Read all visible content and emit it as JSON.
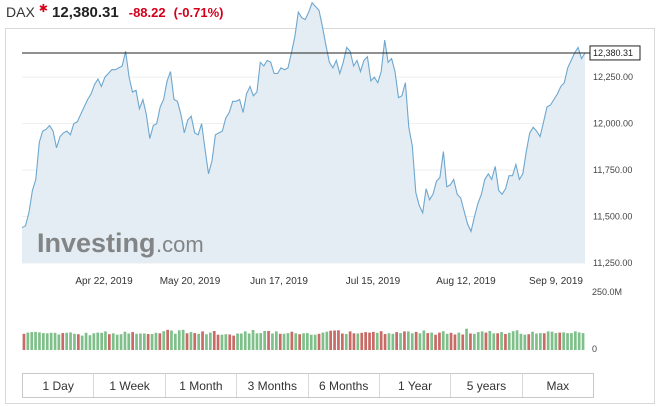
{
  "header": {
    "symbol": "DAX",
    "direction_icon": "star-down-icon",
    "last": "12,380.31",
    "change": "-88.22",
    "change_pct": "(-0.71%)",
    "down_color": "#d4001b"
  },
  "watermark": {
    "brand": "Investing",
    "suffix": ".com"
  },
  "timeframes": [
    "1 Day",
    "1 Week",
    "1 Month",
    "3 Months",
    "6 Months",
    "1 Year",
    "5 years",
    "Max"
  ],
  "chart_data": {
    "type": "area",
    "title": "",
    "price_axis": {
      "min": 11250,
      "max": 12450,
      "ticks": [
        11250,
        11500,
        11750,
        12000,
        12250
      ],
      "tick_labels": [
        "11,250.00",
        "11,500.00",
        "11,750.00",
        "12,000.00",
        "12,250.00"
      ]
    },
    "date_axis": {
      "labels": [
        "Apr 22, 2019",
        "May 20, 2019",
        "Jun 17, 2019",
        "Jul 15, 2019",
        "Aug 12, 2019",
        "Sep 9, 2019"
      ]
    },
    "last_price": {
      "value": 12380.31,
      "label": "12,380.31"
    },
    "series": [
      {
        "values": [
          11440,
          11450,
          11520,
          11640,
          11700,
          11900,
          11960,
          11970,
          11990,
          11960,
          11870,
          11930,
          11950,
          11960,
          11940,
          12000,
          12010,
          12050,
          12090,
          12130,
          12160,
          12210,
          12240,
          12200,
          12250,
          12270,
          12290,
          12290,
          12300,
          12310,
          12390,
          12250,
          12170,
          12180,
          12080,
          12130,
          12050,
          11920,
          11990,
          12000,
          12090,
          12130,
          12230,
          12280,
          12130,
          12120,
          12050,
          11950,
          12020,
          12040,
          11950,
          11940,
          12000,
          11860,
          11730,
          11800,
          11940,
          11950,
          11960,
          12030,
          12060,
          12120,
          12120,
          12130,
          12060,
          12160,
          12200,
          12150,
          12170,
          12330,
          12310,
          12340,
          12330,
          12270,
          12270,
          12300,
          12290,
          12300,
          12380,
          12470,
          12600,
          12570,
          12560,
          12600,
          12650,
          12630,
          12610,
          12520,
          12420,
          12330,
          12300,
          12340,
          12270,
          12330,
          12410,
          12390,
          12310,
          12340,
          12280,
          12340,
          12360,
          12230,
          12250,
          12220,
          12280,
          12450,
          12330,
          12350,
          12280,
          12140,
          12150,
          12220,
          11980,
          11880,
          11630,
          11560,
          11520,
          11650,
          11590,
          11620,
          11690,
          11710,
          11850,
          11660,
          11670,
          11700,
          11620,
          11600,
          11530,
          11460,
          11420,
          11500,
          11570,
          11620,
          11700,
          11730,
          11700,
          11770,
          11640,
          11620,
          11650,
          11720,
          11720,
          11780,
          11700,
          11730,
          11850,
          11950,
          11980,
          11960,
          11930,
          12010,
          12090,
          12100,
          12130,
          12160,
          12200,
          12220,
          12300,
          12340,
          12380,
          12410,
          12350,
          12380
        ]
      }
    ],
    "volume": {
      "axis_labels": [
        "250.0M",
        "0"
      ],
      "max": 250,
      "up_color": "#7fbf8a",
      "down_color": "#c86a66",
      "values": [
        70,
        75,
        77,
        78,
        76,
        73,
        72,
        74,
        74,
        67,
        73,
        74,
        76,
        70,
        68,
        62,
        74,
        64,
        72,
        75,
        74,
        80,
        68,
        72,
        66,
        68,
        79,
        71,
        77,
        70,
        71,
        71,
        69,
        69,
        74,
        72,
        81,
        87,
        84,
        70,
        85,
        87,
        72,
        77,
        73,
        70,
        80,
        68,
        75,
        82,
        66,
        66,
        68,
        67,
        62,
        71,
        71,
        80,
        71,
        86,
        72,
        73,
        82,
        82,
        71,
        80,
        70,
        70,
        73,
        79,
        72,
        68,
        72,
        73,
        66,
        66,
        70,
        75,
        79,
        83,
        84,
        85,
        71,
        69,
        80,
        72,
        71,
        74,
        77,
        75,
        78,
        74,
        81,
        69,
        72,
        70,
        77,
        73,
        80,
        80,
        72,
        78,
        72,
        84,
        73,
        75,
        66,
        75,
        81,
        70,
        74,
        67,
        75,
        67,
        92,
        71,
        70,
        77,
        80,
        75,
        82,
        72,
        72,
        77,
        69,
        74,
        81,
        85,
        70,
        66,
        68,
        79,
        71,
        73,
        72,
        80,
        79,
        73,
        75,
        76,
        73,
        73,
        80,
        76,
        73
      ],
      "direction": [
        "d",
        "u",
        "u",
        "u",
        "u",
        "u",
        "u",
        "u",
        "u",
        "u",
        "d",
        "u",
        "u",
        "u",
        "d",
        "u",
        "u",
        "u",
        "u",
        "u",
        "u",
        "u",
        "d",
        "u",
        "u",
        "u",
        "u",
        "u",
        "d",
        "u",
        "u",
        "u",
        "d",
        "u",
        "u",
        "d",
        "u",
        "d",
        "u",
        "u",
        "u",
        "u",
        "d",
        "u",
        "d",
        "u",
        "d",
        "u",
        "u",
        "d",
        "d",
        "u",
        "u",
        "d",
        "d",
        "u",
        "u",
        "u",
        "u",
        "u",
        "u",
        "u",
        "u",
        "d",
        "u",
        "u",
        "d",
        "u",
        "u",
        "d",
        "u",
        "d",
        "u",
        "u",
        "u",
        "u",
        "d",
        "u",
        "u",
        "d",
        "d",
        "d",
        "d",
        "u",
        "d",
        "d",
        "u",
        "d",
        "d",
        "d",
        "d",
        "u",
        "d",
        "d",
        "u",
        "u",
        "d",
        "u",
        "d",
        "u",
        "u",
        "d",
        "u",
        "u",
        "d",
        "u",
        "d",
        "d",
        "u",
        "u",
        "d",
        "d",
        "u",
        "d",
        "u",
        "d",
        "u",
        "u",
        "u",
        "d",
        "u",
        "u",
        "d",
        "u",
        "d",
        "u",
        "u",
        "u",
        "u",
        "u",
        "d",
        "u",
        "u",
        "u",
        "d",
        "u",
        "u",
        "u",
        "d",
        "u",
        "u",
        "u",
        "u",
        "u",
        "u"
      ]
    }
  }
}
